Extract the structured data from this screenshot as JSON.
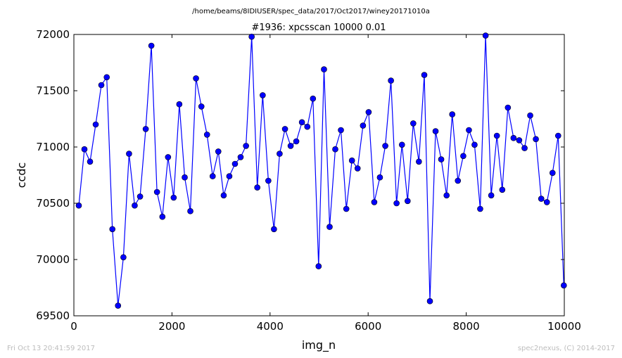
{
  "suptitle": "/home/beams/8IDIUSER/spec_data/2017/Oct2017/winey20171010a",
  "footer_left": "Fri Oct 13 20:41:59 2017",
  "footer_right": "spec2nexus, (C) 2014-2017",
  "chart_data": {
    "type": "line",
    "title": "#1936: xpcsscan 10000 0.01",
    "xlabel": "img_n",
    "ylabel": "ccdc",
    "xlim": [
      0,
      10000
    ],
    "ylim": [
      69500,
      72000
    ],
    "xticks": [
      "0",
      "2000",
      "4000",
      "6000",
      "8000",
      "10000"
    ],
    "xtick_values": [
      0,
      2000,
      4000,
      6000,
      8000,
      10000
    ],
    "yticks": [
      "69500",
      "70000",
      "70500",
      "71000",
      "71500",
      "72000"
    ],
    "ytick_values": [
      69500,
      70000,
      70500,
      71000,
      71500,
      72000
    ],
    "grid": false,
    "line_color": "#0000ff",
    "marker_color": "#0000ff",
    "series": [
      {
        "x": [
          100,
          215,
          330,
          445,
          560,
          670,
          785,
          900,
          1010,
          1125,
          1240,
          1350,
          1465,
          1580,
          1695,
          1805,
          1920,
          2035,
          2150,
          2260,
          2375,
          2490,
          2600,
          2715,
          2830,
          2945,
          3055,
          3170,
          3285,
          3400,
          3510,
          3625,
          3740,
          3850,
          3965,
          4080,
          4195,
          4305,
          4420,
          4535,
          4650,
          4760,
          4875,
          4990,
          5100,
          5215,
          5330,
          5445,
          5555,
          5670,
          5785,
          5895,
          6010,
          6125,
          6240,
          6350,
          6465,
          6580,
          6690,
          6805,
          6920,
          7035,
          7145,
          7260,
          7375,
          7490,
          7600,
          7715,
          7830,
          7940,
          8055,
          8170,
          8285,
          8395,
          8510,
          8625,
          8735,
          8850,
          8965,
          9080,
          9190,
          9305,
          9420,
          9530,
          9645,
          9760,
          9875,
          9990
        ],
        "y": [
          70480,
          70980,
          70870,
          71200,
          71550,
          71620,
          70270,
          69590,
          70020,
          70940,
          70480,
          70560,
          71160,
          71900,
          70600,
          70380,
          70910,
          70550,
          71380,
          70730,
          70430,
          71610,
          71360,
          71110,
          70740,
          70960,
          70570,
          70740,
          70850,
          70910,
          71010,
          71980,
          70640,
          71460,
          70700,
          70270,
          70940,
          71160,
          71010,
          71050,
          71220,
          71180,
          71430,
          69940,
          71690,
          70290,
          70980,
          71150,
          70450,
          70880,
          70810,
          71190,
          71310,
          70510,
          70730,
          71010,
          71590,
          70500,
          71020,
          70520,
          71210,
          70870,
          71640,
          69630,
          71140,
          70890,
          70570,
          71290,
          70700,
          70920,
          71150,
          71020,
          70450,
          71990,
          70570,
          71100,
          70620,
          71350,
          71080,
          71060,
          70990,
          71280,
          71070,
          70540,
          70510,
          70770,
          71100,
          69770
        ]
      }
    ]
  }
}
